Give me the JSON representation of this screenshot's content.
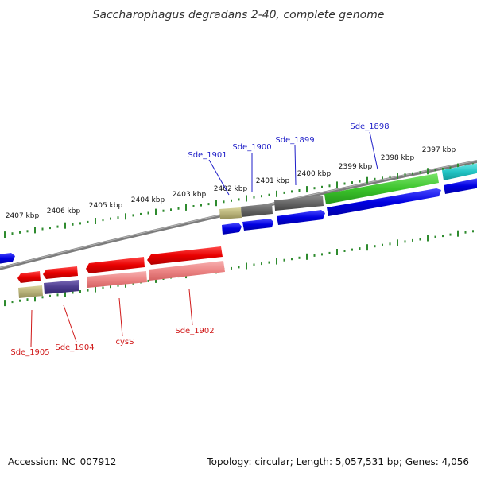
{
  "header": {
    "title": "Saccharophagus degradans 2-40, complete genome"
  },
  "footer": {
    "accession": "Accession: NC_007912",
    "summary": "Topology: circular; Length: 5,057,531 bp; Genes: 4,056"
  },
  "colors": {
    "backbone": "#808080",
    "tick": "#2e8b2e",
    "label_top": "#1e1ec8",
    "label_bottom": "#d01818"
  },
  "ticks": [
    {
      "label": "2397 kbp"
    },
    {
      "label": "2398 kbp"
    },
    {
      "label": "2399 kbp"
    },
    {
      "label": "2400 kbp"
    },
    {
      "label": "2401 kbp"
    },
    {
      "label": "2402 kbp"
    },
    {
      "label": "2403 kbp"
    },
    {
      "label": "2404 kbp"
    },
    {
      "label": "2405 kbp"
    },
    {
      "label": "2406 kbp"
    },
    {
      "label": "2407 kbp"
    }
  ],
  "gene_labels": {
    "top": [
      {
        "name": "Sde_1901"
      },
      {
        "name": "Sde_1900"
      },
      {
        "name": "Sde_1899"
      },
      {
        "name": "Sde_1898"
      }
    ],
    "bottom": [
      {
        "name": "Sde_1905"
      },
      {
        "name": "Sde_1904"
      },
      {
        "name": "cysS"
      },
      {
        "name": "Sde_1902"
      }
    ]
  }
}
